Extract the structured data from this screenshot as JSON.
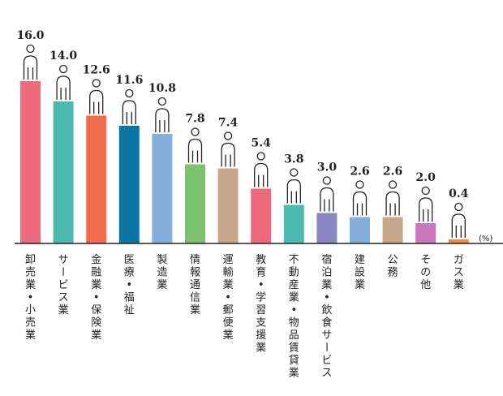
{
  "chart_data": {
    "type": "bar",
    "unit_label": "(%)",
    "categories": [
      "卸売業・小売業",
      "サービス業",
      "金融業・保険業",
      "医療・福祉",
      "製造業",
      "情報通信業",
      "運輸業・郵便業",
      "教育・学習支援業",
      "不動産業・物品賃貸業",
      "宿泊業・飲食サービス",
      "建設業",
      "公務",
      "その他",
      "ガス業"
    ],
    "values": [
      16.0,
      14.0,
      12.6,
      11.6,
      10.8,
      7.8,
      7.4,
      5.4,
      3.8,
      3.0,
      2.6,
      2.6,
      2.0,
      0.4
    ],
    "value_labels": [
      "16.0",
      "14.0",
      "12.6",
      "11.6",
      "10.8",
      "7.8",
      "7.4",
      "5.4",
      "3.8",
      "3.0",
      "2.6",
      "2.6",
      "2.0",
      "0.4"
    ],
    "colors": [
      "#ee6b7e",
      "#4dbab2",
      "#f06c4c",
      "#0a76a4",
      "#86aedb",
      "#7ec16c",
      "#c8a88a",
      "#ee6b7e",
      "#4dbab2",
      "#8b85c2",
      "#86aedb",
      "#c8a88a",
      "#c978be",
      "#f08a4c"
    ],
    "ylim": [
      0,
      16
    ],
    "legend": "none",
    "grid": false
  }
}
